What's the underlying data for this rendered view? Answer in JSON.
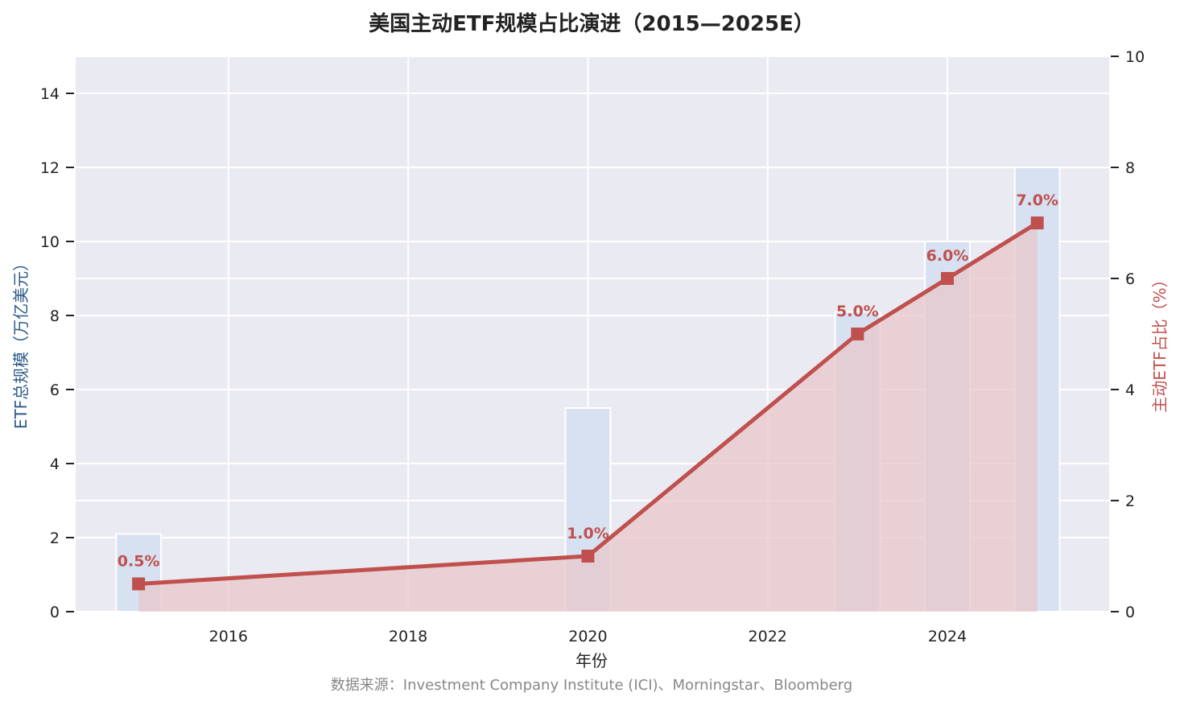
{
  "chart_data": {
    "type": "bar+line",
    "title": "美国主动ETF规模占比演进（2015—2025E）",
    "xlabel": "年份",
    "ylabel_left": "ETF总规模（万亿美元）",
    "ylabel_right": "主动ETF占比（%）",
    "source": "数据来源：Investment Company Institute (ICI)、Morningstar、Bloomberg",
    "x_ticks": [
      "2016",
      "2018",
      "2020",
      "2022",
      "2024"
    ],
    "x_tick_values": [
      2016,
      2018,
      2020,
      2022,
      2024
    ],
    "xlim": [
      2014.3,
      2025.8
    ],
    "y_left_ticks": [
      "0",
      "2",
      "4",
      "6",
      "8",
      "10",
      "12",
      "14"
    ],
    "y_left_tick_values": [
      0,
      2,
      4,
      6,
      8,
      10,
      12,
      14
    ],
    "y_left_lim": [
      0,
      15
    ],
    "y_right_ticks": [
      "0",
      "2",
      "4",
      "6",
      "8",
      "10"
    ],
    "y_right_tick_values": [
      0,
      2,
      4,
      6,
      8,
      10
    ],
    "y_right_lim": [
      0,
      10
    ],
    "grid": true,
    "series": [
      {
        "name": "ETF总规模",
        "type": "bar",
        "axis": "left",
        "x": [
          2015,
          2020,
          2023,
          2024,
          2025
        ],
        "values": [
          2.1,
          5.5,
          8.1,
          10.0,
          12.0
        ]
      },
      {
        "name": "主动ETF占比",
        "type": "line",
        "axis": "right",
        "x": [
          2015,
          2020,
          2023,
          2024,
          2025
        ],
        "values": [
          0.5,
          1.0,
          5.0,
          6.0,
          7.0
        ],
        "labels": [
          "0.5%",
          "1.0%",
          "5.0%",
          "6.0%",
          "7.0%"
        ]
      }
    ],
    "colors": {
      "bar_fill": "#d7e1f1",
      "line": "#c0504d",
      "area_fill": "#e7c7cb",
      "plot_bg": "#eaeaf2",
      "grid": "#ffffff",
      "left_label": "#2e5a87",
      "right_label": "#c0504d"
    }
  }
}
